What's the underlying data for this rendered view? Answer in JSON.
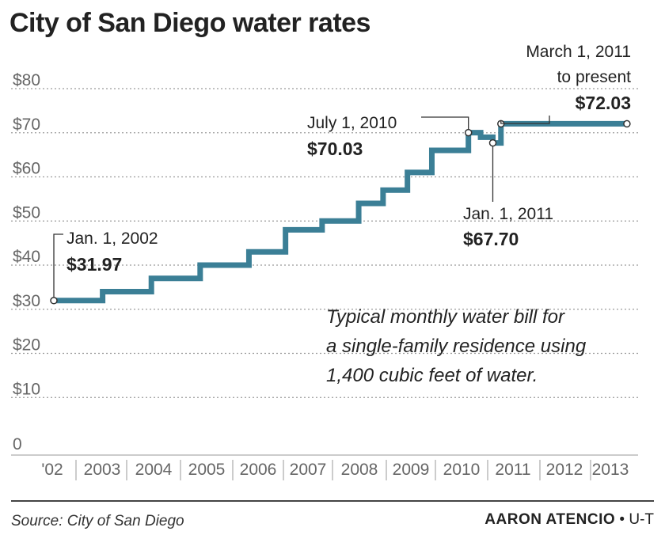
{
  "title": "City of San Diego water rates",
  "colors": {
    "line": "#3b7f96",
    "grid": "#9a9a9a",
    "text": "#222222",
    "muted": "#666666"
  },
  "chart_data": {
    "type": "line",
    "step": true,
    "title": "City of San Diego water rates",
    "xlabel": "",
    "ylabel": "",
    "ylim": [
      0,
      80
    ],
    "y_ticks": [
      0,
      10,
      20,
      30,
      40,
      50,
      60,
      70,
      80
    ],
    "y_tick_labels": [
      "0",
      "$10",
      "$20",
      "$30",
      "$40",
      "$50",
      "$60",
      "$70",
      "$80"
    ],
    "x_ticks": [
      {
        "label": "'02",
        "year": 2002
      },
      {
        "label": "2003",
        "year": 2003
      },
      {
        "label": "2004",
        "year": 2004
      },
      {
        "label": "2005",
        "year": 2005
      },
      {
        "label": "2006",
        "year": 2006
      },
      {
        "label": "2007",
        "year": 2007
      },
      {
        "label": "2008",
        "year": 2008
      },
      {
        "label": "2009",
        "year": 2009
      },
      {
        "label": "2010",
        "year": 2010
      },
      {
        "label": "2011",
        "year": 2011
      },
      {
        "label": "2012",
        "year": 2012
      },
      {
        "label": "2013",
        "year": 2013
      }
    ],
    "x_range": [
      2002.0,
      2013.8
    ],
    "grid": true,
    "series": [
      {
        "points": [
          {
            "date": "2002-01-01",
            "value": 31.97
          },
          {
            "date": "2003-01-01",
            "value": 34.0
          },
          {
            "date": "2004-01-01",
            "value": 37.0
          },
          {
            "date": "2005-01-01",
            "value": 40.0
          },
          {
            "date": "2006-01-01",
            "value": 43.0
          },
          {
            "date": "2006-10-01",
            "value": 48.0
          },
          {
            "date": "2007-07-01",
            "value": 50.0
          },
          {
            "date": "2008-04-01",
            "value": 54.0
          },
          {
            "date": "2008-10-01",
            "value": 57.0
          },
          {
            "date": "2009-04-01",
            "value": 61.0
          },
          {
            "date": "2009-10-01",
            "value": 66.0
          },
          {
            "date": "2010-07-01",
            "value": 70.03
          },
          {
            "date": "2010-10-01",
            "value": 69.0
          },
          {
            "date": "2011-01-01",
            "value": 67.7
          },
          {
            "date": "2011-03-01",
            "value": 72.03
          },
          {
            "date": "2013-10-01",
            "value": 72.03
          }
        ]
      }
    ],
    "annotations": [
      {
        "id": "a2002",
        "date_label": "Jan. 1, 2002",
        "value_label": "$31.97",
        "date": "2002-01-01",
        "value": 31.97
      },
      {
        "id": "a2010",
        "date_label": "July 1, 2010",
        "value_label": "$70.03",
        "date": "2010-07-01",
        "value": 70.03
      },
      {
        "id": "a2011",
        "date_label": "Jan. 1, 2011",
        "value_label": "$67.70",
        "date": "2011-01-01",
        "value": 67.7
      },
      {
        "id": "a2011b",
        "date_label_1": "March 1, 2011",
        "date_label_2": "to present",
        "value_label": "$72.03",
        "date": "2011-03-01",
        "value": 72.03
      }
    ],
    "note_lines": [
      "Typical monthly water bill for",
      "a single-family residence using",
      "1,400 cubic feet of water."
    ]
  },
  "footer": {
    "source": "Source: City of San Diego",
    "credit_name": "AARON ATENCIO",
    "credit_sep": "•",
    "credit_org": "U-T"
  }
}
